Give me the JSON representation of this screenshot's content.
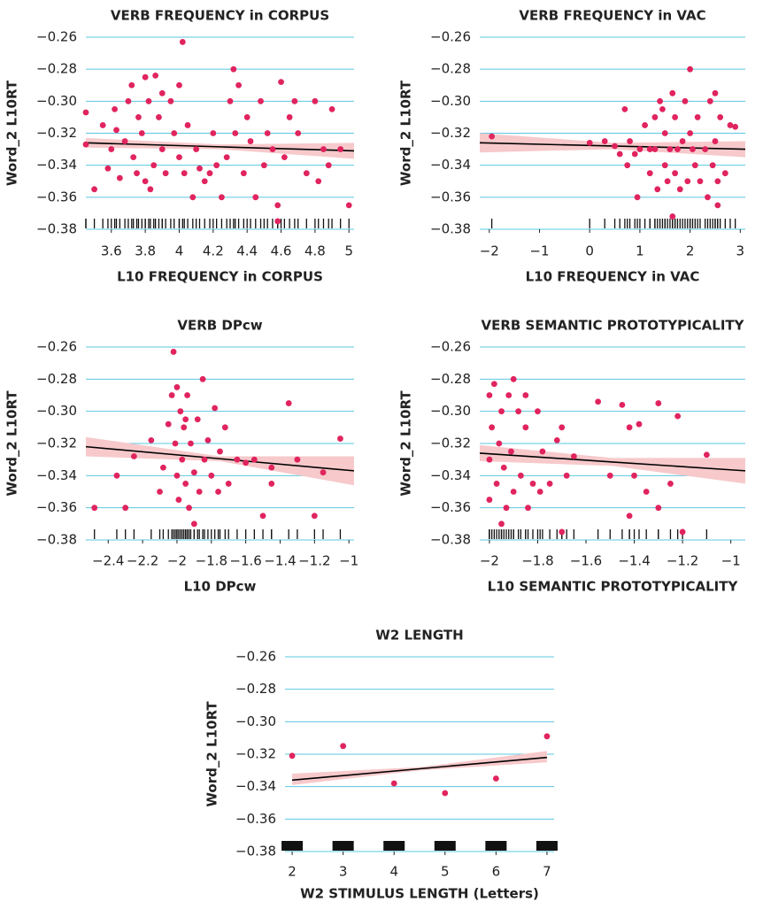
{
  "chart_data": [
    {
      "type": "scatter",
      "title": "VERB FREQUENCY in CORPUS",
      "x_label": "L10 FREQUENCY in CORPUS",
      "y_label": "Word_2 L10RT",
      "color": "#e0245e",
      "grid_color": "#5bc8e0",
      "rug": true,
      "xlim": [
        3.45,
        5.03
      ],
      "ylim": [
        -0.38,
        -0.25
      ],
      "xticks": [
        3.6,
        3.8,
        4,
        4.2,
        4.4,
        4.6,
        4.8,
        5
      ],
      "yticks": [
        {
          "value": -0.38,
          "label": "−0.38"
        },
        {
          "value": -0.36,
          "label": "−0.36"
        },
        {
          "value": -0.34,
          "label": "−0.34"
        },
        {
          "value": -0.32,
          "label": "−0.32"
        },
        {
          "value": -0.3,
          "label": "−0.30"
        },
        {
          "value": -0.28,
          "label": "−0.28"
        },
        {
          "value": -0.26,
          "label": "−0.26"
        }
      ],
      "x": [
        3.45,
        3.45,
        3.5,
        3.55,
        3.58,
        3.6,
        3.62,
        3.63,
        3.65,
        3.68,
        3.7,
        3.72,
        3.73,
        3.75,
        3.76,
        3.78,
        3.8,
        3.8,
        3.82,
        3.83,
        3.85,
        3.86,
        3.88,
        3.9,
        3.9,
        3.92,
        3.95,
        3.97,
        4.0,
        4.0,
        4.02,
        4.03,
        4.05,
        4.08,
        4.1,
        4.12,
        4.15,
        4.18,
        4.2,
        4.22,
        4.25,
        4.28,
        4.3,
        4.32,
        4.33,
        4.35,
        4.38,
        4.4,
        4.42,
        4.45,
        4.48,
        4.5,
        4.52,
        4.55,
        4.58,
        4.6,
        4.62,
        4.65,
        4.68,
        4.7,
        4.75,
        4.8,
        4.82,
        4.85,
        4.88,
        4.9,
        4.95,
        5.0,
        4.58
      ],
      "y": [
        -0.307,
        -0.327,
        -0.355,
        -0.315,
        -0.342,
        -0.33,
        -0.305,
        -0.318,
        -0.348,
        -0.325,
        -0.3,
        -0.29,
        -0.335,
        -0.345,
        -0.31,
        -0.32,
        -0.285,
        -0.35,
        -0.3,
        -0.355,
        -0.34,
        -0.284,
        -0.31,
        -0.295,
        -0.33,
        -0.345,
        -0.3,
        -0.32,
        -0.29,
        -0.335,
        -0.263,
        -0.345,
        -0.315,
        -0.36,
        -0.33,
        -0.342,
        -0.35,
        -0.345,
        -0.32,
        -0.34,
        -0.36,
        -0.335,
        -0.3,
        -0.28,
        -0.32,
        -0.29,
        -0.345,
        -0.31,
        -0.325,
        -0.36,
        -0.3,
        -0.34,
        -0.32,
        -0.33,
        -0.365,
        -0.288,
        -0.335,
        -0.31,
        -0.3,
        -0.32,
        -0.345,
        -0.3,
        -0.35,
        -0.33,
        -0.34,
        -0.305,
        -0.33,
        -0.365,
        -0.375
      ],
      "fit": {
        "color": "#000000",
        "band_color": "#f7c9cb",
        "x": [
          3.45,
          4.24,
          5.03
        ],
        "y": [
          -0.326,
          -0.3285,
          -0.331
        ],
        "lower": [
          -0.329,
          -0.33,
          -0.336
        ],
        "upper": [
          -0.323,
          -0.327,
          -0.326
        ]
      }
    },
    {
      "type": "scatter",
      "title": "VERB FREQUENCY in VAC",
      "x_label": "L10 FREQUENCY in VAC",
      "y_label": "Word_2 L10RT",
      "color": "#e0245e",
      "grid_color": "#5bc8e0",
      "rug": true,
      "xlim": [
        -2.19,
        3.1
      ],
      "ylim": [
        -0.38,
        -0.25
      ],
      "xticks": [
        {
          "value": -2,
          "label": "−2"
        },
        {
          "value": -1,
          "label": "−1"
        },
        0,
        1,
        2,
        3
      ],
      "yticks": [
        {
          "value": -0.38,
          "label": "−0.38"
        },
        {
          "value": -0.36,
          "label": "−0.36"
        },
        {
          "value": -0.34,
          "label": "−0.34"
        },
        {
          "value": -0.32,
          "label": "−0.32"
        },
        {
          "value": -0.3,
          "label": "−0.30"
        },
        {
          "value": -0.28,
          "label": "−0.28"
        },
        {
          "value": -0.26,
          "label": "−0.26"
        }
      ],
      "x": [
        -1.95,
        0,
        0.3,
        0.5,
        0.6,
        0.7,
        0.75,
        0.8,
        0.9,
        0.95,
        1.0,
        1.1,
        1.2,
        1.2,
        1.3,
        1.3,
        1.35,
        1.4,
        1.45,
        1.5,
        1.5,
        1.55,
        1.6,
        1.65,
        1.7,
        1.7,
        1.75,
        1.8,
        1.85,
        1.9,
        1.95,
        2.0,
        2.0,
        2.05,
        2.1,
        2.15,
        2.2,
        2.3,
        2.35,
        2.4,
        2.45,
        2.5,
        2.5,
        2.55,
        2.6,
        2.7,
        2.8,
        2.9,
        1.65,
        2.55
      ],
      "y": [
        -0.322,
        -0.326,
        -0.325,
        -0.328,
        -0.333,
        -0.305,
        -0.34,
        -0.325,
        -0.333,
        -0.36,
        -0.33,
        -0.315,
        -0.33,
        -0.345,
        -0.31,
        -0.33,
        -0.355,
        -0.3,
        -0.305,
        -0.32,
        -0.34,
        -0.35,
        -0.33,
        -0.295,
        -0.31,
        -0.345,
        -0.33,
        -0.355,
        -0.325,
        -0.3,
        -0.35,
        -0.28,
        -0.32,
        -0.33,
        -0.34,
        -0.31,
        -0.35,
        -0.33,
        -0.36,
        -0.3,
        -0.34,
        -0.295,
        -0.325,
        -0.35,
        -0.31,
        -0.345,
        -0.315,
        -0.316,
        -0.372,
        -0.365
      ],
      "fit": {
        "color": "#000000",
        "band_color": "#f7c9cb",
        "x": [
          -2.19,
          0.455,
          3.1
        ],
        "y": [
          -0.326,
          -0.328,
          -0.33
        ],
        "lower": [
          -0.332,
          -0.33,
          -0.335
        ],
        "upper": [
          -0.32,
          -0.326,
          -0.325
        ]
      }
    },
    {
      "type": "scatter",
      "title": "VERB DPcw",
      "x_label": "L10 DPcw",
      "y_label": "Word_2 L10RT",
      "color": "#e0245e",
      "grid_color": "#5bc8e0",
      "rug": true,
      "xlim": [
        -2.53,
        -0.97
      ],
      "ylim": [
        -0.38,
        -0.25
      ],
      "xticks": [
        {
          "value": -2.4,
          "label": "−2.4"
        },
        {
          "value": -2.2,
          "label": "−2.2"
        },
        {
          "value": -2,
          "label": "−2"
        },
        {
          "value": -1.8,
          "label": "−1.8"
        },
        {
          "value": -1.6,
          "label": "−1.6"
        },
        {
          "value": -1.4,
          "label": "−1.4"
        },
        {
          "value": -1.2,
          "label": "−1.2"
        },
        {
          "value": -1,
          "label": "−1"
        }
      ],
      "yticks": [
        {
          "value": -0.38,
          "label": "−0.38"
        },
        {
          "value": -0.36,
          "label": "−0.36"
        },
        {
          "value": -0.34,
          "label": "−0.34"
        },
        {
          "value": -0.32,
          "label": "−0.32"
        },
        {
          "value": -0.3,
          "label": "−0.30"
        },
        {
          "value": -0.28,
          "label": "−0.28"
        },
        {
          "value": -0.26,
          "label": "−0.26"
        }
      ],
      "x": [
        -2.48,
        -2.35,
        -2.3,
        -2.25,
        -2.15,
        -2.1,
        -2.08,
        -2.05,
        -2.03,
        -2.02,
        -2.01,
        -2.0,
        -2.0,
        -1.99,
        -1.98,
        -1.97,
        -1.96,
        -1.95,
        -1.94,
        -1.93,
        -1.92,
        -1.9,
        -1.9,
        -1.88,
        -1.87,
        -1.85,
        -1.84,
        -1.82,
        -1.8,
        -1.78,
        -1.76,
        -1.75,
        -1.72,
        -1.7,
        -1.65,
        -1.6,
        -1.55,
        -1.5,
        -1.45,
        -1.35,
        -1.3,
        -1.2,
        -1.15,
        -1.05,
        -1.45,
        -1.95
      ],
      "y": [
        -0.36,
        -0.34,
        -0.36,
        -0.328,
        -0.318,
        -0.35,
        -0.335,
        -0.308,
        -0.29,
        -0.263,
        -0.32,
        -0.34,
        -0.285,
        -0.355,
        -0.3,
        -0.33,
        -0.31,
        -0.345,
        -0.29,
        -0.36,
        -0.32,
        -0.338,
        -0.37,
        -0.305,
        -0.35,
        -0.28,
        -0.33,
        -0.318,
        -0.34,
        -0.298,
        -0.35,
        -0.325,
        -0.31,
        -0.345,
        -0.33,
        -0.332,
        -0.33,
        -0.365,
        -0.345,
        -0.295,
        -0.33,
        -0.365,
        -0.338,
        -0.317,
        -0.335,
        -0.305
      ],
      "fit": {
        "color": "#000000",
        "band_color": "#f7c9cb",
        "x": [
          -2.53,
          -1.75,
          -0.97
        ],
        "y": [
          -0.322,
          -0.3295,
          -0.337
        ],
        "lower": [
          -0.328,
          -0.331,
          -0.346
        ],
        "upper": [
          -0.316,
          -0.328,
          -0.328
        ]
      }
    },
    {
      "type": "scatter",
      "title": "VERB SEMANTIC PROTOTYPICALITY",
      "x_label": "L10 SEMANTIC PROTOTYPICALITY",
      "y_label": "Word_2 L10RT",
      "color": "#e0245e",
      "grid_color": "#5bc8e0",
      "rug": true,
      "xlim": [
        -2.04,
        -0.94
      ],
      "ylim": [
        -0.38,
        -0.25
      ],
      "xticks": [
        {
          "value": -2,
          "label": "−2"
        },
        {
          "value": -1.8,
          "label": "−1.8"
        },
        {
          "value": -1.6,
          "label": "−1.6"
        },
        {
          "value": -1.4,
          "label": "−1.4"
        },
        {
          "value": -1.2,
          "label": "−1.2"
        },
        {
          "value": -1,
          "label": "−1"
        }
      ],
      "yticks": [
        {
          "value": -0.38,
          "label": "−0.38"
        },
        {
          "value": -0.36,
          "label": "−0.36"
        },
        {
          "value": -0.34,
          "label": "−0.34"
        },
        {
          "value": -0.32,
          "label": "−0.32"
        },
        {
          "value": -0.3,
          "label": "−0.30"
        },
        {
          "value": -0.28,
          "label": "−0.28"
        },
        {
          "value": -0.26,
          "label": "−0.26"
        }
      ],
      "x": [
        -2.0,
        -2.0,
        -2.0,
        -1.99,
        -1.98,
        -1.97,
        -1.96,
        -1.95,
        -1.94,
        -1.93,
        -1.92,
        -1.91,
        -1.9,
        -1.9,
        -1.88,
        -1.87,
        -1.85,
        -1.84,
        -1.82,
        -1.8,
        -1.79,
        -1.78,
        -1.75,
        -1.72,
        -1.7,
        -1.68,
        -1.65,
        -1.7,
        -1.5,
        -1.55,
        -1.45,
        -1.42,
        -1.4,
        -1.38,
        -1.42,
        -1.35,
        -1.3,
        -1.3,
        -1.25,
        -1.22,
        -1.2,
        -1.1,
        -1.85,
        -1.95
      ],
      "y": [
        -0.29,
        -0.33,
        -0.355,
        -0.31,
        -0.283,
        -0.345,
        -0.32,
        -0.3,
        -0.335,
        -0.36,
        -0.29,
        -0.325,
        -0.28,
        -0.35,
        -0.3,
        -0.34,
        -0.31,
        -0.36,
        -0.345,
        -0.3,
        -0.35,
        -0.325,
        -0.345,
        -0.318,
        -0.31,
        -0.34,
        -0.328,
        -0.375,
        -0.34,
        -0.294,
        -0.296,
        -0.31,
        -0.34,
        -0.308,
        -0.365,
        -0.35,
        -0.295,
        -0.36,
        -0.345,
        -0.303,
        -0.375,
        -0.327,
        -0.29,
        -0.37
      ],
      "fit": {
        "color": "#000000",
        "band_color": "#f7c9cb",
        "x": [
          -2.04,
          -1.49,
          -0.94
        ],
        "y": [
          -0.326,
          -0.3315,
          -0.337
        ],
        "lower": [
          -0.331,
          -0.334,
          -0.345
        ],
        "upper": [
          -0.321,
          -0.329,
          -0.329
        ]
      }
    },
    {
      "type": "scatter",
      "title": "W2 LENGTH",
      "x_label": "W2 STIMULUS LENGTH (Letters)",
      "y_label": "Word_2 L10RT",
      "color": "#e0245e",
      "grid_color": "#5bc8e0",
      "rug": true,
      "xlim": [
        1.86,
        7.14
      ],
      "ylim": [
        -0.38,
        -0.25
      ],
      "xticks": [
        2,
        3,
        4,
        5,
        6,
        7
      ],
      "yticks": [
        {
          "value": -0.38,
          "label": "−0.38"
        },
        {
          "value": -0.36,
          "label": "−0.36"
        },
        {
          "value": -0.34,
          "label": "−0.34"
        },
        {
          "value": -0.32,
          "label": "−0.32"
        },
        {
          "value": -0.3,
          "label": "−0.30"
        },
        {
          "value": -0.28,
          "label": "−0.28"
        },
        {
          "value": -0.26,
          "label": "−0.26"
        }
      ],
      "x": [
        2,
        3,
        4,
        5,
        6,
        7
      ],
      "y": [
        -0.321,
        -0.315,
        -0.338,
        -0.344,
        -0.335,
        -0.309
      ],
      "fit": {
        "color": "#000000",
        "band_color": "#f7c9cb",
        "x": [
          2,
          4.5,
          7
        ],
        "y": [
          -0.336,
          -0.329,
          -0.322
        ],
        "lower": [
          -0.339,
          -0.33,
          -0.325
        ],
        "upper": [
          -0.332,
          -0.328,
          -0.318
        ]
      }
    }
  ]
}
